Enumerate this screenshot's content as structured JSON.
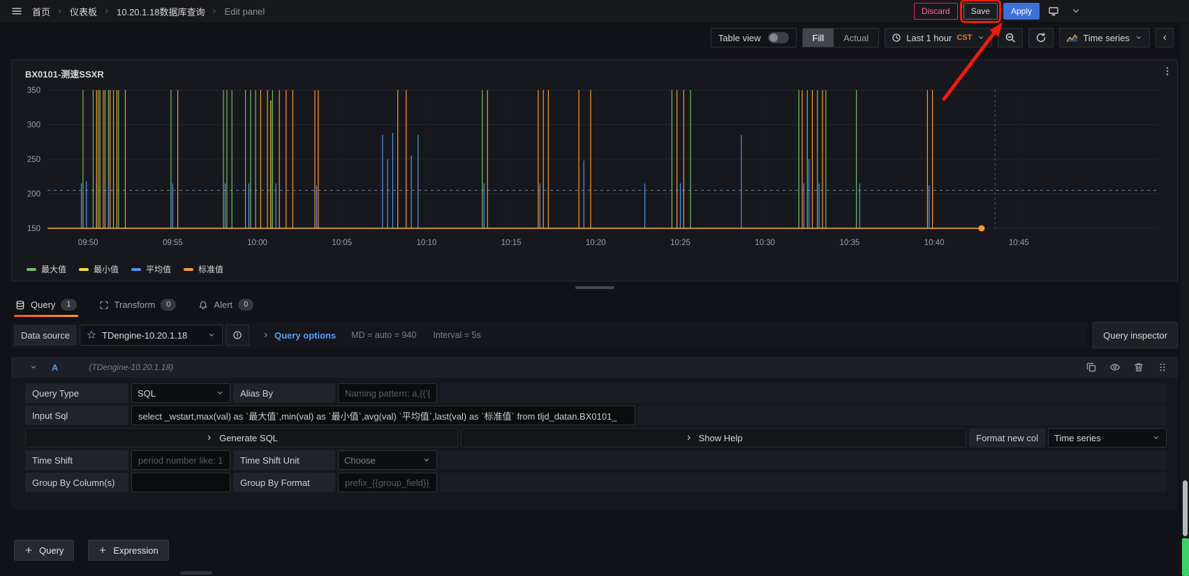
{
  "topbar": {
    "breadcrumbs": [
      "首页",
      "仪表板",
      "10.20.1.18数据库查询",
      "Edit panel"
    ],
    "discard": "Discard",
    "save": "Save",
    "apply": "Apply"
  },
  "toolbar": {
    "table_view": "Table view",
    "fill": "Fill",
    "actual": "Actual",
    "time_range": "Last 1 hour",
    "timezone": "CST",
    "viz": "Time series"
  },
  "panel": {
    "title": "BX0101-测速SSXR"
  },
  "chart_data": {
    "type": "line",
    "title": "BX0101-测速SSXR",
    "x_ticks": [
      {
        "t": 50,
        "label": "09:50"
      },
      {
        "t": 55,
        "label": "09:55"
      },
      {
        "t": 60,
        "label": "10:00"
      },
      {
        "t": 65,
        "label": "10:05"
      },
      {
        "t": 70,
        "label": "10:10"
      },
      {
        "t": 75,
        "label": "10:15"
      },
      {
        "t": 80,
        "label": "10:20"
      },
      {
        "t": 85,
        "label": "10:25"
      },
      {
        "t": 90,
        "label": "10:30"
      },
      {
        "t": 95,
        "label": "10:35"
      },
      {
        "t": 100,
        "label": "10:40"
      },
      {
        "t": 105,
        "label": "10:45"
      }
    ],
    "y_ticks": [
      150,
      200,
      250,
      300,
      350
    ],
    "ylim": [
      143,
      358
    ],
    "x_domain_minutes": [
      47.6,
      113.2
    ],
    "baseline": 150,
    "threshold_dashed": 205,
    "now_marker_minutes": 103.6,
    "end_point": {
      "t": 102.8,
      "value": 150
    },
    "legend_position": "bottom",
    "series": [
      {
        "name": "最大值",
        "color": "#73bf69",
        "baseline": 150,
        "spikes": [
          [
            49.7,
            350
          ],
          [
            50.3,
            350
          ],
          [
            50.6,
            350
          ],
          [
            50.9,
            350
          ],
          [
            51.2,
            350
          ],
          [
            51.8,
            350
          ],
          [
            54.9,
            350
          ],
          [
            58.0,
            350
          ],
          [
            58.2,
            350
          ],
          [
            58.5,
            350
          ],
          [
            59.3,
            350
          ],
          [
            59.6,
            350
          ],
          [
            59.9,
            350
          ],
          [
            60.9,
            350
          ],
          [
            73.3,
            350
          ],
          [
            84.5,
            350
          ],
          [
            85.6,
            350
          ],
          [
            92.0,
            350
          ],
          [
            92.5,
            350
          ],
          [
            93.1,
            350
          ],
          [
            93.6,
            350
          ],
          [
            95.4,
            350
          ]
        ]
      },
      {
        "name": "最小值",
        "color": "#fade2a",
        "baseline": 150,
        "spikes": [
          [
            60.8,
            335
          ]
        ]
      },
      {
        "name": "平均值",
        "color": "#5794f2",
        "baseline": 150,
        "spikes": [
          [
            49.6,
            215
          ],
          [
            49.9,
            218
          ],
          [
            50.5,
            215
          ],
          [
            51.2,
            215
          ],
          [
            55.0,
            215
          ],
          [
            58.1,
            215
          ],
          [
            59.5,
            215
          ],
          [
            61.1,
            215
          ],
          [
            63.5,
            212
          ],
          [
            67.4,
            285
          ],
          [
            67.7,
            250
          ],
          [
            68.0,
            288
          ],
          [
            69.1,
            255
          ],
          [
            69.5,
            285
          ],
          [
            73.4,
            215
          ],
          [
            76.7,
            215
          ],
          [
            79.3,
            248
          ],
          [
            82.9,
            215
          ],
          [
            85.0,
            215
          ],
          [
            88.6,
            285
          ],
          [
            92.3,
            215
          ],
          [
            92.6,
            250
          ],
          [
            93.2,
            215
          ],
          [
            95.6,
            215
          ],
          [
            99.7,
            212
          ]
        ]
      },
      {
        "name": "标准值",
        "color": "#ff9830",
        "baseline": 150,
        "spikes": [
          [
            50.5,
            350
          ],
          [
            50.7,
            350
          ],
          [
            51.0,
            350
          ],
          [
            51.3,
            350
          ],
          [
            51.5,
            350
          ],
          [
            51.7,
            350
          ],
          [
            52.2,
            350
          ],
          [
            55.3,
            350
          ],
          [
            60.2,
            350
          ],
          [
            60.6,
            350
          ],
          [
            61.3,
            350
          ],
          [
            61.7,
            350
          ],
          [
            62.1,
            350
          ],
          [
            63.4,
            350
          ],
          [
            63.6,
            350
          ],
          [
            68.3,
            350
          ],
          [
            68.8,
            350
          ],
          [
            73.6,
            350
          ],
          [
            76.6,
            350
          ],
          [
            76.9,
            350
          ],
          [
            77.2,
            350
          ],
          [
            79.0,
            350
          ],
          [
            79.7,
            350
          ],
          [
            84.8,
            350
          ],
          [
            85.2,
            350
          ],
          [
            92.2,
            350
          ],
          [
            92.8,
            350
          ],
          [
            93.4,
            350
          ],
          [
            99.6,
            350
          ],
          [
            99.9,
            350
          ]
        ]
      }
    ]
  },
  "tabs": [
    {
      "label": "Query",
      "count": "1"
    },
    {
      "label": "Transform",
      "count": "0"
    },
    {
      "label": "Alert",
      "count": "0"
    }
  ],
  "datasource_bar": {
    "label": "Data source",
    "value": "TDengine-10.20.1.18",
    "query_options": "Query options",
    "md_summary": "MD = auto = 940",
    "interval_summary": "Interval = 5s",
    "inspector": "Query inspector"
  },
  "query": {
    "ref_id": "A",
    "datasource_hint": "(TDengine-10.20.1.18)",
    "query_type_label": "Query Type",
    "query_type_value": "SQL",
    "alias_label": "Alias By",
    "alias_placeholder": "Naming pattern: a,{{'{",
    "sql_label": "Input Sql",
    "sql_value": "select _wstart,max(val) as `最大值`,min(val) as `最小值`,avg(val) `平均值`,last(val) as `标准值` from tljd_datan.BX0101_",
    "generate_sql": "Generate SQL",
    "show_help": "Show Help",
    "format_label": "Format new col",
    "format_value": "Time series",
    "time_shift_label": "Time Shift",
    "time_shift_placeholder": "period number like: 1",
    "time_shift_unit_label": "Time Shift Unit",
    "time_shift_unit_value": "Choose",
    "group_by_label": "Group By Column(s)",
    "group_by_format_label": "Group By Format",
    "group_by_format_placeholder": "prefix_{{group_field}}_"
  },
  "footer": {
    "add_query": "Query",
    "add_expression": "Expression"
  },
  "colors": {
    "accent_orange": "#ff780a",
    "apply_blue": "#3d71d9",
    "discard_red": "#e0226e",
    "link_blue": "#5b9cf5",
    "annotation_red": "#ed1d08",
    "scroll_green": "#3fd168",
    "threshold_dash": "#7fa3c6"
  }
}
